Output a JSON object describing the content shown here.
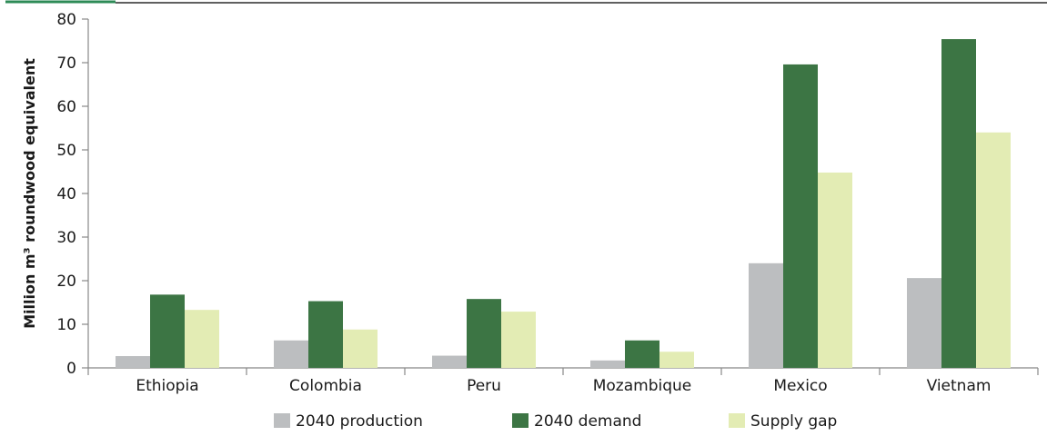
{
  "chart_data": {
    "type": "bar",
    "title": "",
    "xlabel": "",
    "ylabel": "Million m³ roundwood equivalent",
    "ylim": [
      0,
      80
    ],
    "yticks": [
      0,
      10,
      20,
      30,
      40,
      50,
      60,
      70,
      80
    ],
    "categories": [
      "Ethiopia",
      "Colombia",
      "Peru",
      "Mozambique",
      "Mexico",
      "Vietnam"
    ],
    "series": [
      {
        "name": "2040 production",
        "color": "#bcbec0",
        "values": [
          2.7,
          6.3,
          2.8,
          1.7,
          24,
          20.6
        ]
      },
      {
        "name": "2040 demand",
        "color": "#3c7544",
        "values": [
          16.8,
          15.3,
          15.8,
          6.3,
          69.6,
          75.4
        ]
      },
      {
        "name": "Supply gap",
        "color": "#e3ecb4",
        "values": [
          13.3,
          8.8,
          12.9,
          3.7,
          44.8,
          54
        ]
      }
    ],
    "grid": false,
    "legend": "bottom",
    "decor": {
      "accent_color": "#2e8b57",
      "rule_color": "#000000",
      "axis_color": "#888888"
    }
  }
}
